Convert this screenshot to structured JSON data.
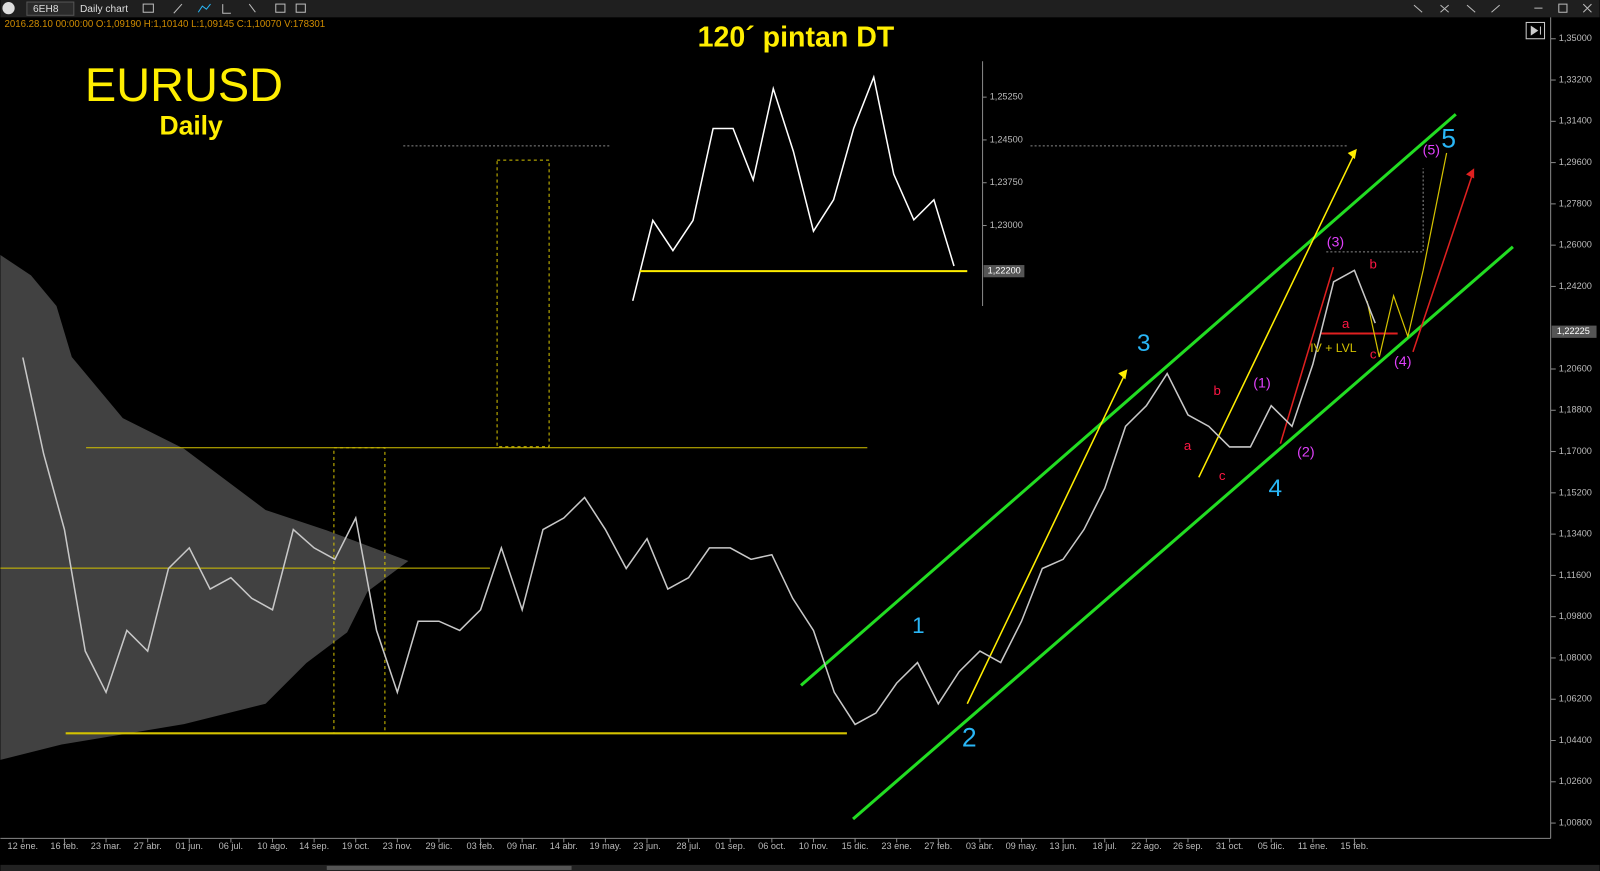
{
  "toolbar": {
    "symbol": "6EH8",
    "chart": "Daily chart",
    "info": "2016.28.10 00:00:00   O:1,09190   H:1,10140   L:1,09145   C:1,10070   V:178301"
  },
  "chart_data": [
    {
      "type": "line",
      "title": "EURUSD",
      "subtitle": "Daily",
      "categories": [
        "12 ene.",
        null,
        "16 feb.",
        null,
        "23 mar.",
        null,
        "27 abr.",
        null,
        "01 jun.",
        null,
        "06 jul.",
        null,
        "10 ago.",
        null,
        "14 sep.",
        null,
        "19 oct.",
        null,
        "23 nov.",
        null,
        "29 dic.",
        null,
        "03 feb.",
        null,
        "09 mar.",
        null,
        "14 abr.",
        null,
        "19 may.",
        null,
        "23 jun.",
        null,
        "28 jul.",
        null,
        "01 sep.",
        null,
        "06 oct.",
        null,
        "10 nov.",
        null,
        "15 dic.",
        null,
        "23 ene.",
        null,
        "27 feb.",
        null,
        "03 abr.",
        null,
        "09 may.",
        null,
        "13 jun.",
        null,
        "18 jul.",
        null,
        "22 ago.",
        null,
        "26 sep.",
        null,
        "31 oct.",
        null,
        "05 dic.",
        null,
        "11 ene.",
        null,
        "15 feb.",
        null
      ],
      "values": [
        1.211,
        1.169,
        1.136,
        1.083,
        1.065,
        1.092,
        1.083,
        1.119,
        1.128,
        1.11,
        1.115,
        1.106,
        1.101,
        1.136,
        1.128,
        1.123,
        1.141,
        1.092,
        1.065,
        1.096,
        1.096,
        1.092,
        1.101,
        1.128,
        1.101,
        1.136,
        1.141,
        1.15,
        1.136,
        1.119,
        1.132,
        1.11,
        1.115,
        1.128,
        1.128,
        1.123,
        1.125,
        1.106,
        1.092,
        1.065,
        1.051,
        1.056,
        1.069,
        1.078,
        1.06,
        1.074,
        1.083,
        1.078,
        1.096,
        1.119,
        1.123,
        1.136,
        1.154,
        1.181,
        1.19,
        1.204,
        1.186,
        1.181,
        1.172,
        1.172,
        1.19,
        1.181,
        1.208,
        1.244,
        1.249,
        1.226
      ],
      "color": "#c8c8c8",
      "ylim": [
        1.008,
        1.35
      ],
      "yticks": [
        {
          "value": 1.35,
          "label": "1,35000"
        },
        {
          "value": 1.332,
          "label": "1,33200"
        },
        {
          "value": 1.314,
          "label": "1,31400"
        },
        {
          "value": 1.296,
          "label": "1,29600"
        },
        {
          "value": 1.278,
          "label": "1,27800"
        },
        {
          "value": 1.26,
          "label": "1,26000"
        },
        {
          "value": 1.242,
          "label": "1,24200"
        },
        {
          "value": 1.206,
          "label": "1,20600"
        },
        {
          "value": 1.188,
          "label": "1,18800"
        },
        {
          "value": 1.17,
          "label": "1,17000"
        },
        {
          "value": 1.152,
          "label": "1,15200"
        },
        {
          "value": 1.134,
          "label": "1,13400"
        },
        {
          "value": 1.116,
          "label": "1,11600"
        },
        {
          "value": 1.098,
          "label": "1,09800"
        },
        {
          "value": 1.08,
          "label": "1,08000"
        },
        {
          "value": 1.062,
          "label": "1,06200"
        },
        {
          "value": 1.044,
          "label": "1,04400"
        },
        {
          "value": 1.026,
          "label": "1,02600"
        },
        {
          "value": 1.008,
          "label": "1,00800"
        }
      ],
      "last_price": {
        "value": 1.22225,
        "label": "1,22225"
      },
      "annotations": [
        {
          "text": "1",
          "color": "#29b6f6"
        },
        {
          "text": "2",
          "color": "#29b6f6"
        },
        {
          "text": "3",
          "color": "#29b6f6"
        },
        {
          "text": "4",
          "color": "#29b6f6"
        },
        {
          "text": "5",
          "color": "#29b6f6"
        },
        {
          "text": "(1)",
          "color": "#e040fb"
        },
        {
          "text": "(2)",
          "color": "#e040fb"
        },
        {
          "text": "(3)",
          "color": "#e040fb"
        },
        {
          "text": "(4)",
          "color": "#e040fb"
        },
        {
          "text": "(5)",
          "color": "#e040fb"
        },
        {
          "text": "a",
          "color": "#ff1744"
        },
        {
          "text": "b",
          "color": "#ff1744"
        },
        {
          "text": "c",
          "color": "#ff1744"
        },
        {
          "text": "a",
          "color": "#ff1744"
        },
        {
          "text": "b",
          "color": "#ff1744"
        },
        {
          "text": "c",
          "color": "#ff1744"
        },
        {
          "text": "IV + LVL",
          "color": "#d4c200"
        }
      ]
    },
    {
      "type": "line",
      "title": "120´ pintan DT",
      "values": [
        1.2168,
        1.2309,
        1.2256,
        1.2309,
        1.247,
        1.247,
        1.238,
        1.254,
        1.243,
        1.229,
        1.2345,
        1.247,
        1.256,
        1.239,
        1.231,
        1.2345,
        1.2229
      ],
      "color": "#ffffff",
      "ylim": [
        1.2159,
        1.2588
      ],
      "yticks": [
        {
          "value": 1.2525,
          "label": "1,25250"
        },
        {
          "value": 1.245,
          "label": "1,24500"
        },
        {
          "value": 1.2375,
          "label": "1,23750"
        },
        {
          "value": 1.23,
          "label": "1,23000"
        }
      ],
      "last_price": {
        "value": 1.222,
        "label": "1,22200"
      }
    }
  ]
}
